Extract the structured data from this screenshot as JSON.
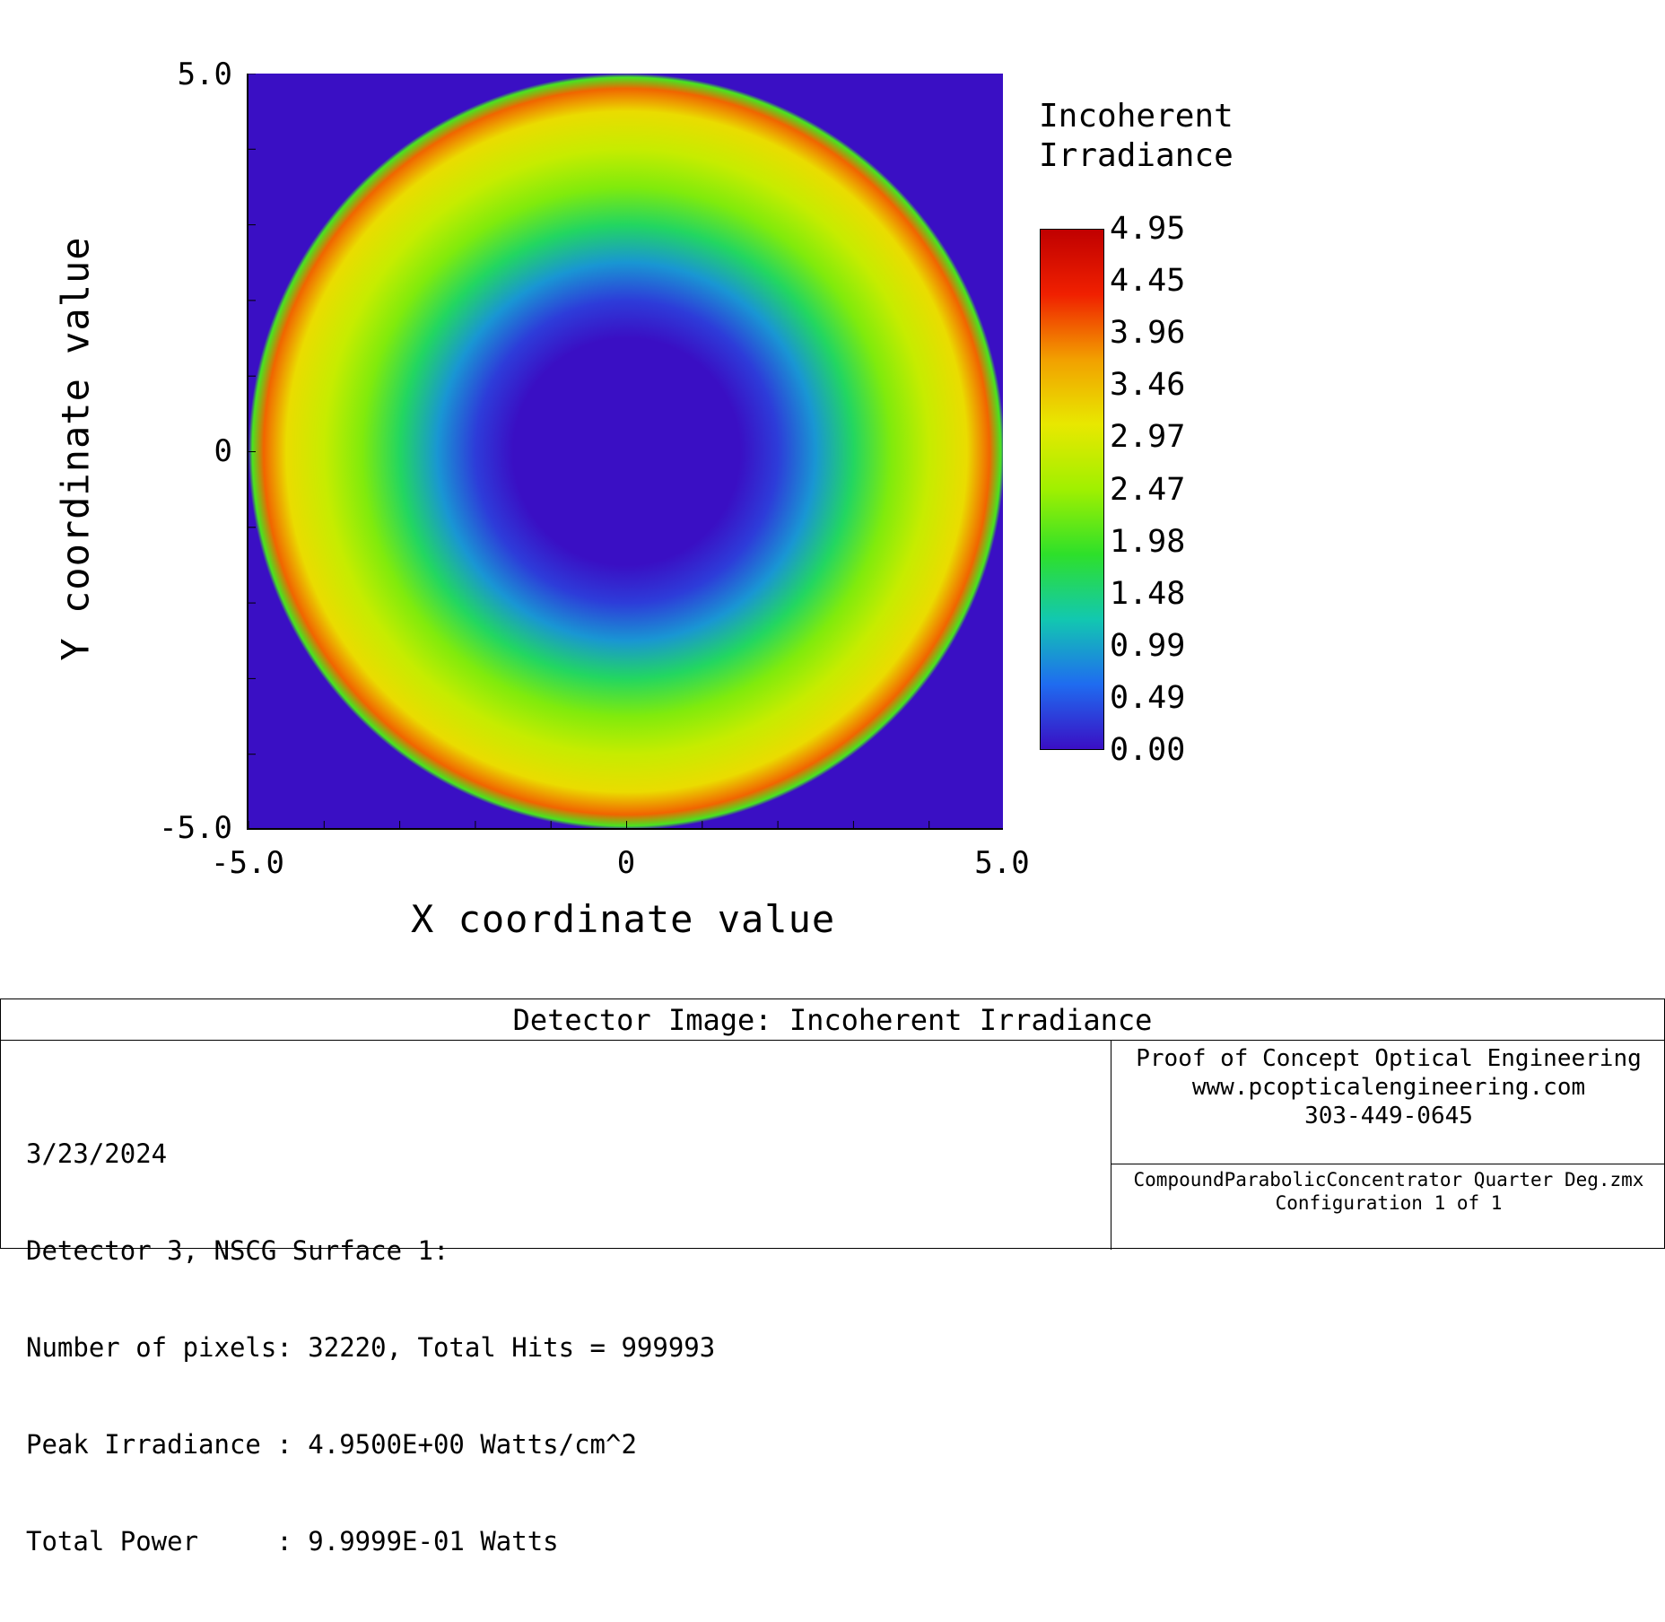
{
  "chart_data": {
    "type": "heatmap",
    "title": "Detector Image: Incoherent Irradiance",
    "xlabel": "X coordinate value",
    "ylabel": "Y coordinate value",
    "xlim": [
      -5.0,
      5.0
    ],
    "ylim": [
      -5.0,
      5.0
    ],
    "x_ticks": [
      "-5.0",
      "0",
      "5.0"
    ],
    "y_ticks": [
      "5.0",
      "0",
      "-5.0"
    ],
    "colorbar_title": "Incoherent\nIrradiance",
    "colorbar_ticks": [
      "4.95",
      "4.45",
      "3.96",
      "3.46",
      "2.97",
      "2.47",
      "1.98",
      "1.48",
      "0.99",
      "0.49",
      "0.00"
    ],
    "value_range": [
      0.0,
      4.95
    ],
    "profile": {
      "description_units": "radius in data units vs irradiance",
      "radius": [
        0.0,
        1.5,
        2.0,
        2.5,
        3.0,
        3.5,
        4.0,
        4.5,
        4.8,
        4.95,
        5.0
      ],
      "irradiance": [
        0.0,
        0.0,
        0.3,
        0.9,
        1.6,
        2.3,
        2.8,
        3.2,
        4.0,
        2.0,
        0.0
      ]
    },
    "colors": {
      "background": "#3a0fc4",
      "colormap": [
        "#3a0fc4",
        "#1f6cf0",
        "#12c8b0",
        "#2ee02a",
        "#a0f000",
        "#e8e800",
        "#f2a000",
        "#f02000",
        "#c00000"
      ]
    },
    "grid": false
  },
  "info": {
    "title": "Detector Image: Incoherent Irradiance",
    "lines": [
      "3/23/2024",
      "Detector 3, NSCG Surface 1:",
      "Number of pixels: 32220, Total Hits = 999993",
      "Peak Irradiance : 4.9500E+00 Watts/cm^2",
      "Total Power     : 9.9999E-01 Watts"
    ],
    "company": [
      "Proof of Concept Optical Engineering",
      "www.pcopticalengineering.com",
      "303-449-0645"
    ],
    "file": [
      "CompoundParabolicConcentrator Quarter Deg.zmx",
      "Configuration 1 of 1"
    ]
  }
}
